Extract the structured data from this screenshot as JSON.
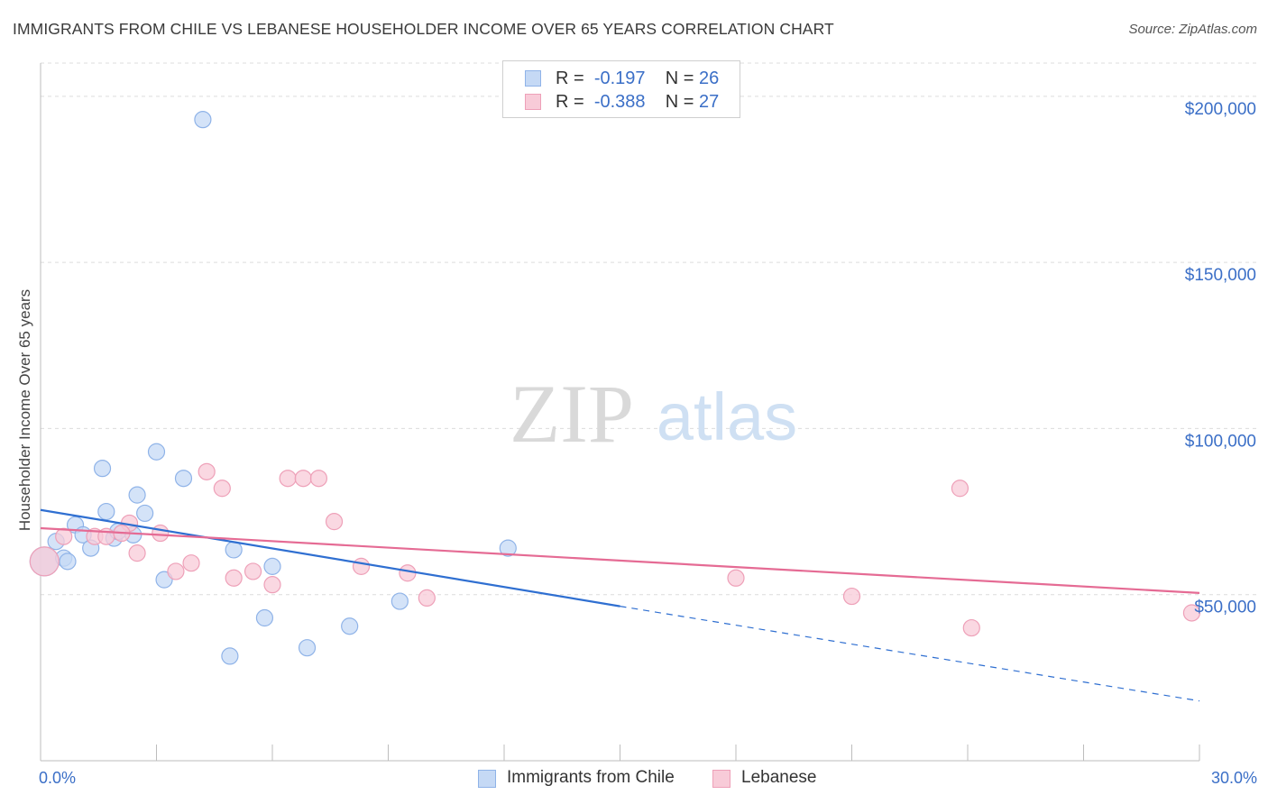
{
  "title": "IMMIGRANTS FROM CHILE VS LEBANESE HOUSEHOLDER INCOME OVER 65 YEARS CORRELATION CHART",
  "source": "Source: ZipAtlas.com",
  "watermark": {
    "zip": "ZIP",
    "atlas": "atlas"
  },
  "chart_data": {
    "type": "scatter",
    "xlabel": "",
    "ylabel": "Householder Income Over 65 years",
    "xlim": [
      0,
      30
    ],
    "ylim": [
      0,
      210000
    ],
    "x_tick_labels": [
      "0.0%",
      "30.0%"
    ],
    "y_ticks": [
      50000,
      100000,
      150000,
      200000
    ],
    "y_tick_labels": [
      "$50,000",
      "$100,000",
      "$150,000",
      "$200,000"
    ],
    "grid": true,
    "legend": "top-center",
    "series": [
      {
        "name": "Immigrants from Chile",
        "color": "#8fb3e8",
        "fill": "#c5d9f5",
        "line_color": "#2f6fd1",
        "stats": {
          "r_label": "R =",
          "r": "-0.197",
          "n_label": "N =",
          "n": "26"
        },
        "trend": {
          "x0": 0,
          "y0": 75500,
          "x1": 15,
          "y1": 46500,
          "dash_to_x": 30,
          "dash_to_y": 18000
        },
        "points": [
          [
            0.1,
            60000,
            28
          ],
          [
            0.4,
            66000,
            14
          ],
          [
            0.6,
            61000,
            14
          ],
          [
            0.7,
            60000,
            14
          ],
          [
            0.9,
            71000,
            14
          ],
          [
            1.1,
            68000,
            14
          ],
          [
            1.3,
            64000,
            14
          ],
          [
            1.6,
            88000,
            14
          ],
          [
            1.7,
            75000,
            14
          ],
          [
            1.9,
            67000,
            14
          ],
          [
            2.0,
            69000,
            14
          ],
          [
            2.4,
            68000,
            14
          ],
          [
            2.5,
            80000,
            14
          ],
          [
            2.7,
            74500,
            14
          ],
          [
            3.0,
            93000,
            14
          ],
          [
            3.2,
            54500,
            14
          ],
          [
            3.7,
            85000,
            14
          ],
          [
            4.2,
            193000,
            14
          ],
          [
            4.9,
            31500,
            14
          ],
          [
            5.0,
            63500,
            14
          ],
          [
            5.8,
            43000,
            14
          ],
          [
            6.0,
            58500,
            14
          ],
          [
            6.9,
            34000,
            14
          ],
          [
            8.0,
            40500,
            14
          ],
          [
            9.3,
            48000,
            14
          ],
          [
            12.1,
            64000,
            14
          ]
        ]
      },
      {
        "name": "Lebanese",
        "color": "#eea0b8",
        "fill": "#f8cbd8",
        "line_color": "#e56b94",
        "stats": {
          "r_label": "R =",
          "r": "-0.388",
          "n_label": "N =",
          "n": "27"
        },
        "trend": {
          "x0": 0,
          "y0": 70000,
          "x1": 30,
          "y1": 50500
        },
        "points": [
          [
            0.1,
            60000,
            28
          ],
          [
            0.6,
            67500,
            14
          ],
          [
            1.4,
            67500,
            14
          ],
          [
            2.3,
            71500,
            14
          ],
          [
            2.5,
            62500,
            14
          ],
          [
            3.1,
            68500,
            14
          ],
          [
            3.5,
            57000,
            14
          ],
          [
            3.9,
            59500,
            14
          ],
          [
            4.3,
            87000,
            14
          ],
          [
            4.7,
            82000,
            14
          ],
          [
            5.0,
            55000,
            14
          ],
          [
            5.5,
            57000,
            14
          ],
          [
            6.0,
            53000,
            14
          ],
          [
            6.4,
            85000,
            14
          ],
          [
            6.8,
            85000,
            14
          ],
          [
            7.2,
            85000,
            14
          ],
          [
            7.6,
            72000,
            14
          ],
          [
            8.3,
            58500,
            14
          ],
          [
            9.5,
            56500,
            14
          ],
          [
            10.0,
            49000,
            14
          ],
          [
            18.0,
            55000,
            14
          ],
          [
            21.0,
            49500,
            14
          ],
          [
            23.8,
            82000,
            14
          ],
          [
            24.1,
            40000,
            14
          ],
          [
            29.8,
            44500,
            14
          ],
          [
            1.7,
            67500,
            14
          ],
          [
            2.1,
            68500,
            14
          ]
        ]
      }
    ]
  }
}
